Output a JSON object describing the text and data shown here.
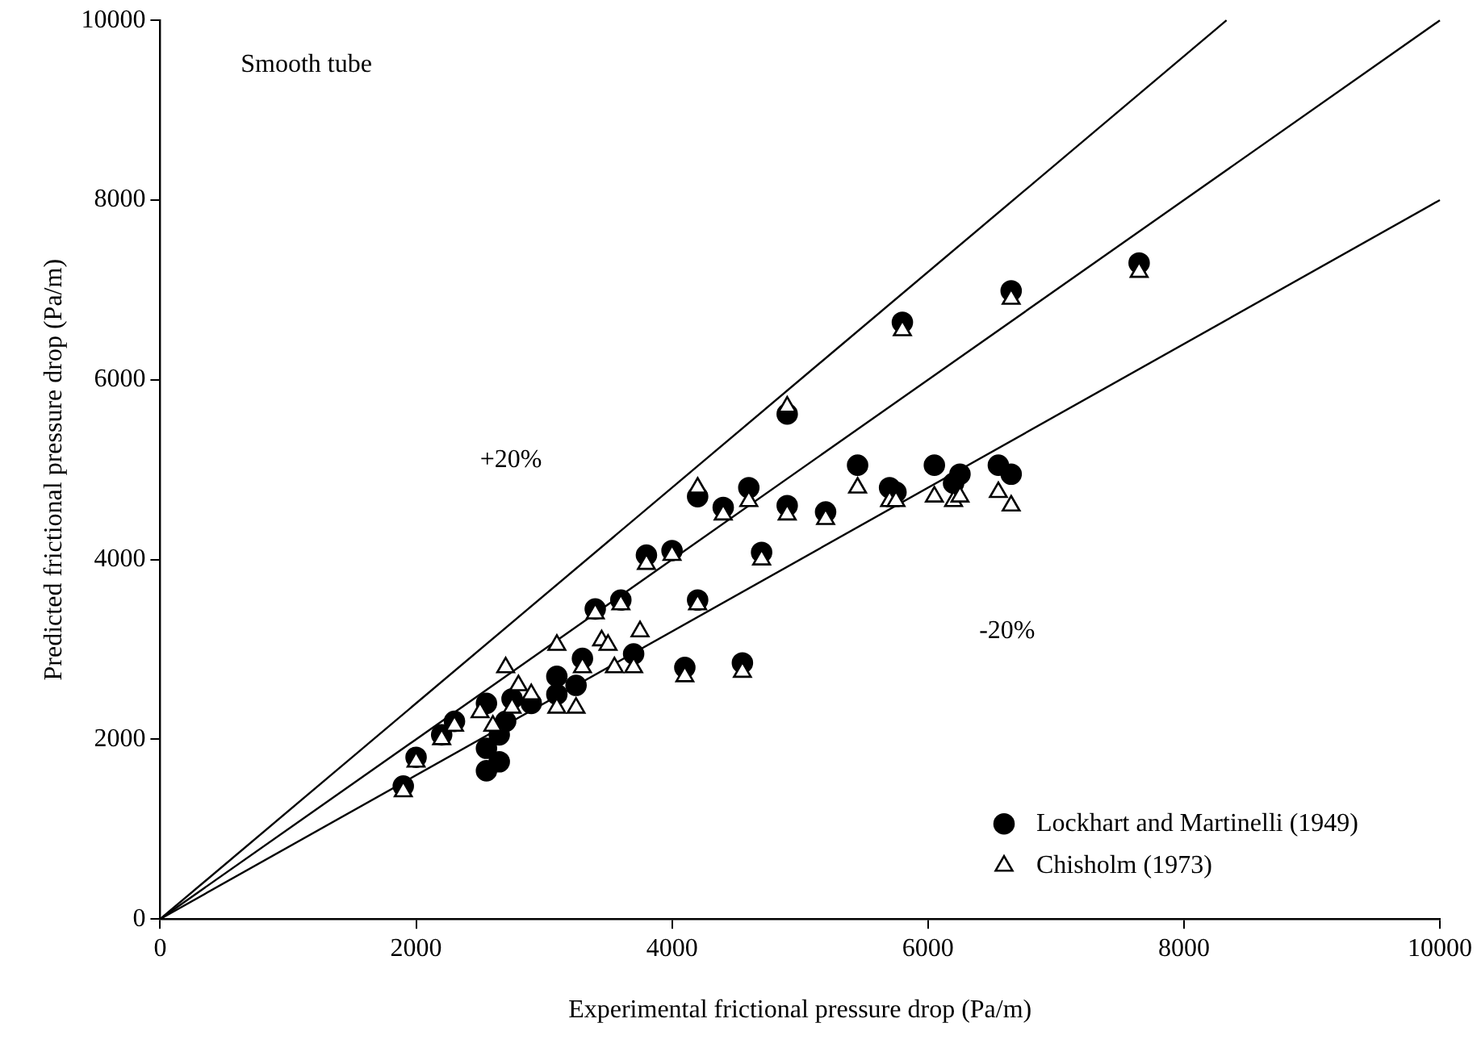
{
  "chart_data": {
    "type": "scatter",
    "xlabel": "Experimental frictional pressure drop (Pa/m)",
    "ylabel": "Predicted frictional pressure drop (Pa/m)",
    "xlim": [
      0,
      10000
    ],
    "xticks": [
      0,
      2000,
      4000,
      6000,
      8000,
      10000
    ],
    "ylim": [
      0,
      10000
    ],
    "yticks": [
      0,
      2000,
      4000,
      6000,
      8000,
      10000
    ],
    "legend": "bottom right",
    "annotations": [
      "Smooth tube",
      "+20%",
      "-20%"
    ],
    "series": [
      {
        "type": "line",
        "color": "#000000",
        "marker": "none",
        "x": [
          0,
          8333
        ],
        "values": [
          0,
          10000
        ]
      },
      {
        "type": "line",
        "color": "#000000",
        "marker": "none",
        "x": [
          0,
          10000
        ],
        "values": [
          0,
          10000
        ]
      },
      {
        "type": "line",
        "color": "#000000",
        "marker": "none",
        "x": [
          0,
          10000
        ],
        "values": [
          0,
          8000
        ]
      },
      {
        "name": "Lockhart and Martinelli (1949)",
        "color": "#000000",
        "marker": "circle",
        "x": [
          1900,
          2000,
          2200,
          2300,
          2550,
          2550,
          2550,
          2650,
          2650,
          2700,
          2750,
          2900,
          3100,
          3100,
          3250,
          3300,
          3400,
          3600,
          3700,
          3800,
          4000,
          4100,
          4200,
          4200,
          4400,
          4550,
          4600,
          4700,
          4900,
          4900,
          5200,
          5450,
          5700,
          5750,
          5800,
          6050,
          6200,
          6250,
          6550,
          6650,
          6650,
          7650
        ],
        "values": [
          1480,
          1800,
          2050,
          2200,
          2400,
          1900,
          1650,
          1750,
          2050,
          2200,
          2450,
          2400,
          2500,
          2700,
          2600,
          2900,
          3450,
          3550,
          2950,
          4050,
          4100,
          2800,
          3550,
          4700,
          4580,
          2850,
          4800,
          4080,
          4600,
          5620,
          4530,
          5050,
          4800,
          4750,
          6640,
          5050,
          4850,
          4950,
          5050,
          4950,
          6990,
          7300
        ]
      },
      {
        "name": "Chisholm (1973)",
        "color": "#000000",
        "marker": "triangle",
        "x": [
          1900,
          2000,
          2200,
          2300,
          2500,
          2600,
          2700,
          2750,
          2800,
          2900,
          3100,
          3100,
          3250,
          3300,
          3400,
          3450,
          3500,
          3550,
          3600,
          3700,
          3750,
          3800,
          4000,
          4100,
          4200,
          4200,
          4400,
          4550,
          4600,
          4700,
          4900,
          4900,
          5200,
          5450,
          5700,
          5750,
          5800,
          6050,
          6200,
          6250,
          6550,
          6650,
          6650,
          7650
        ],
        "values": [
          1420,
          1750,
          2000,
          2150,
          2300,
          2150,
          2800,
          2350,
          2600,
          2500,
          3050,
          2350,
          2350,
          2800,
          3400,
          3100,
          3050,
          2800,
          3500,
          2800,
          3200,
          3950,
          4050,
          2700,
          3500,
          4800,
          4500,
          2750,
          4650,
          4000,
          4500,
          5700,
          4450,
          4800,
          4650,
          4650,
          6550,
          4700,
          4650,
          4700,
          4750,
          4600,
          6900,
          7200
        ]
      }
    ]
  }
}
